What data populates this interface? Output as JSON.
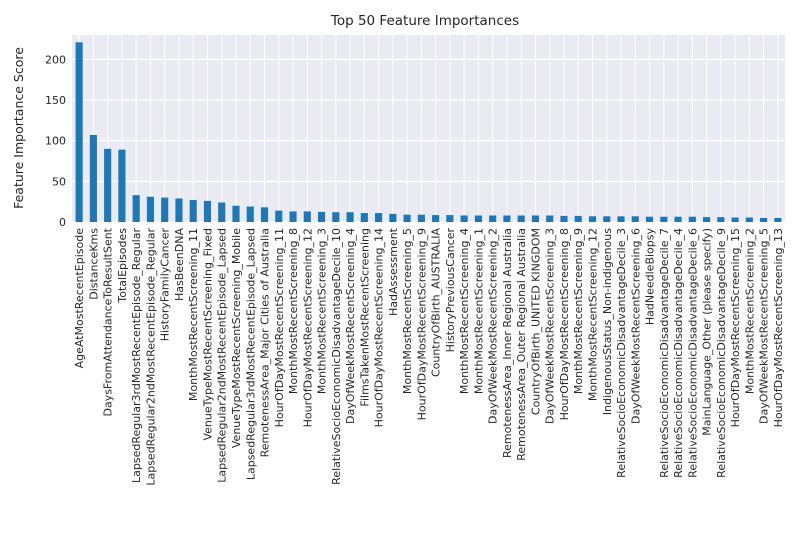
{
  "chart_data": {
    "type": "bar",
    "title": "Top 50 Feature Importances",
    "xlabel": "",
    "ylabel": "Feature Importance Score",
    "ylim": [
      0,
      230
    ],
    "yticks": [
      0,
      50,
      100,
      150,
      200
    ],
    "grid": true,
    "legend": "none",
    "bar_color": "#1f77b4",
    "background_color": "#eaeaf2",
    "grid_color": "#ffffff",
    "categories": [
      "AgeAtMostRecentEpisode",
      "DistanceKms",
      "DaysFromAttendanceToResultSent",
      "TotalEpisodes",
      "LapsedRegular3rdMostRecentEpisode_Regular",
      "LapsedRegular2ndMostRecentEpisode_Regular",
      "HistoryFamilyCancer",
      "HasBeenDNA",
      "MonthMostRecentScreening_11",
      "VenueTypeMostRecentScreening_Fixed",
      "LapsedRegular2ndMostRecentEpisode_Lapsed",
      "VenueTypeMostRecentScreening_Mobile",
      "LapsedRegular3rdMostRecentEpisode_Lapsed",
      "RemotenessArea_Major Cities of Australia",
      "HourOfDayMostRecentScreening_11",
      "MonthMostRecentScreening_8",
      "HourOfDayMostRecentScreening_12",
      "MonthMostRecentScreening_3",
      "RelativeSocioEconomicDisadvantageDecile_10",
      "DayOfWeekMostRecentScreening_4",
      "FilmsTakenMostRecentScreening",
      "HourOfDayMostRecentScreening_14",
      "HadAssessment",
      "MonthMostRecentScreening_5",
      "HourOfDayMostRecentScreening_9",
      "CountryOfBirth_AUSTRALIA",
      "HistoryPreviousCancer",
      "MonthMostRecentScreening_4",
      "MonthMostRecentScreening_1",
      "DayOfWeekMostRecentScreening_2",
      "RemotenessArea_Inner Regional Australia",
      "RemotenessArea_Outer Regional Australia",
      "CountryOfBirth_UNITED KINGDOM",
      "DayOfWeekMostRecentScreening_3",
      "HourOfDayMostRecentScreening_8",
      "MonthMostRecentScreening_9",
      "MonthMostRecentScreening_12",
      "IndigenousStatus_Non-indigenous",
      "RelativeSocioEconomicDisadvantageDecile_3",
      "DayOfWeekMostRecentScreening_6",
      "HadNeedleBiopsy",
      "RelativeSocioEconomicDisadvantageDecile_7",
      "RelativeSocioEconomicDisadvantageDecile_4",
      "RelativeSocioEconomicDisadvantageDecile_6",
      "MainLanguage_Other (please specify)",
      "RelativeSocioEconomicDisadvantageDecile_9",
      "HourOfDayMostRecentScreening_15",
      "MonthMostRecentScreening_2",
      "DayOfWeekMostRecentScreening_5",
      "HourOfDayMostRecentScreening_13"
    ],
    "values": [
      221,
      107,
      90,
      89,
      33,
      31,
      30,
      29,
      27,
      26,
      24,
      20,
      19,
      18,
      14,
      13,
      13,
      12.5,
      12,
      12,
      11,
      11,
      10,
      9,
      9,
      8.5,
      8.5,
      8,
      8,
      8,
      8,
      8,
      8,
      8,
      7.5,
      7.5,
      7,
      7,
      7,
      7,
      6.5,
      6.5,
      6.5,
      6.5,
      6,
      6,
      5.5,
      5.5,
      5,
      5
    ]
  }
}
